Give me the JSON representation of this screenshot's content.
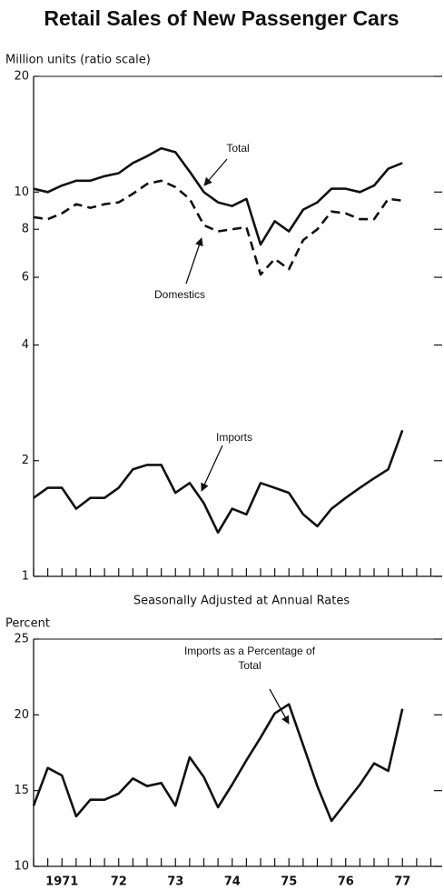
{
  "chart_data": [
    {
      "type": "line",
      "title": "Retail Sales of New Passenger Cars",
      "y_label": "Million units (ratio scale)",
      "log_scale": true,
      "ylim": [
        1,
        20
      ],
      "yticks": [
        1,
        2,
        4,
        6,
        8,
        10,
        20
      ],
      "xlim": [
        1971,
        1978.2
      ],
      "xminorticks": [
        1971,
        1971.25,
        1971.5,
        1971.75,
        1972,
        1972.25,
        1972.5,
        1972.75,
        1973,
        1973.25,
        1973.5,
        1973.75,
        1974,
        1974.25,
        1974.5,
        1974.75,
        1975,
        1975.25,
        1975.5,
        1975.75,
        1976,
        1976.25,
        1976.5,
        1976.75,
        1977,
        1977.25,
        1977.5,
        1977.75,
        1978
      ],
      "x": [
        1971,
        1971.25,
        1971.5,
        1971.75,
        1972,
        1972.25,
        1972.5,
        1972.75,
        1973,
        1973.25,
        1973.5,
        1973.75,
        1974,
        1974.25,
        1974.5,
        1974.75,
        1975,
        1975.25,
        1975.5,
        1975.75,
        1976,
        1976.25,
        1976.5,
        1976.75,
        1977,
        1977.25,
        1977.5
      ],
      "series": [
        {
          "name": "Total",
          "color": "#111111",
          "dashed": false,
          "values": [
            10.2,
            10.0,
            10.4,
            10.7,
            10.7,
            11.0,
            11.2,
            11.9,
            12.4,
            13.0,
            12.7,
            11.3,
            10.0,
            9.4,
            9.2,
            9.6,
            7.3,
            8.4,
            7.9,
            9.0,
            9.4,
            10.2,
            10.2,
            10.0,
            10.4,
            11.5,
            11.9
          ]
        },
        {
          "name": "Domestics",
          "color": "#111111",
          "dashed": true,
          "values": [
            8.6,
            8.5,
            8.8,
            9.3,
            9.1,
            9.3,
            9.4,
            9.9,
            10.5,
            10.7,
            10.3,
            9.6,
            8.2,
            7.9,
            8.0,
            8.1,
            6.1,
            6.7,
            6.3,
            7.5,
            8.0,
            8.9,
            8.8,
            8.5,
            8.5,
            9.6,
            9.5
          ]
        },
        {
          "name": "Imports",
          "color": "#111111",
          "dashed": false,
          "values": [
            1.6,
            1.7,
            1.7,
            1.5,
            1.6,
            1.6,
            1.7,
            1.9,
            1.95,
            1.95,
            1.65,
            1.75,
            1.55,
            1.3,
            1.5,
            1.45,
            1.75,
            1.7,
            1.65,
            1.45,
            1.35,
            1.5,
            1.6,
            1.7,
            1.8,
            1.9,
            2.4
          ]
        }
      ]
    },
    {
      "type": "line",
      "subtitle": "Seasonally Adjusted at Annual Rates",
      "y_label": "Percent",
      "log_scale": false,
      "ylim": [
        10,
        25
      ],
      "yticks": [
        10,
        15,
        20,
        25
      ],
      "xlim": [
        1971,
        1978.2
      ],
      "xticks": [
        {
          "value": 1971.5,
          "label": "1971"
        },
        {
          "value": 1972.5,
          "label": "72"
        },
        {
          "value": 1973.5,
          "label": "73"
        },
        {
          "value": 1974.5,
          "label": "74"
        },
        {
          "value": 1975.5,
          "label": "75"
        },
        {
          "value": 1976.5,
          "label": "76"
        },
        {
          "value": 1977.5,
          "label": "77"
        }
      ],
      "xminorticks": [
        1971,
        1971.25,
        1971.5,
        1971.75,
        1972,
        1972.25,
        1972.5,
        1972.75,
        1973,
        1973.25,
        1973.5,
        1973.75,
        1974,
        1974.25,
        1974.5,
        1974.75,
        1975,
        1975.25,
        1975.5,
        1975.75,
        1976,
        1976.25,
        1976.5,
        1976.75,
        1977,
        1977.25,
        1977.5,
        1977.75,
        1978
      ],
      "x": [
        1971,
        1971.25,
        1971.5,
        1971.75,
        1972,
        1972.25,
        1972.5,
        1972.75,
        1973,
        1973.25,
        1973.5,
        1973.75,
        1974,
        1974.25,
        1974.5,
        1974.75,
        1975,
        1975.25,
        1975.5,
        1975.75,
        1976,
        1976.25,
        1976.5,
        1976.75,
        1977,
        1977.25,
        1977.5
      ],
      "series": [
        {
          "name": "Imports as a Percentage of Total",
          "color": "#111111",
          "dashed": false,
          "values": [
            14.0,
            16.5,
            16.0,
            13.3,
            14.4,
            14.4,
            14.8,
            15.8,
            15.3,
            15.5,
            14.0,
            17.2,
            15.9,
            13.9,
            15.4,
            17.0,
            18.5,
            20.1,
            20.7,
            18.0,
            15.3,
            13.0,
            14.2,
            15.4,
            16.8,
            16.3,
            20.4
          ]
        }
      ]
    }
  ]
}
